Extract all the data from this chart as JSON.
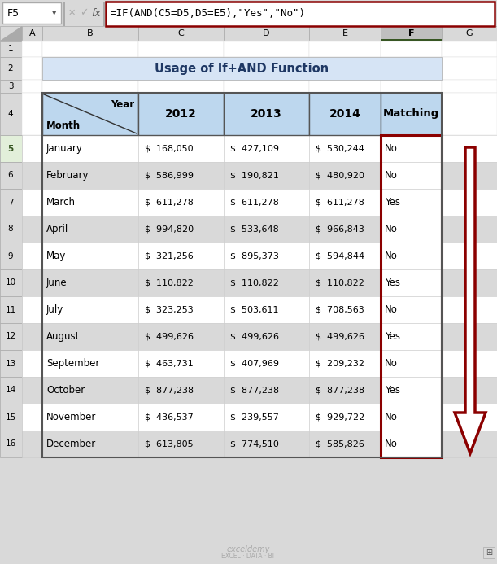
{
  "title": "Usage of If+AND Function",
  "formula_bar_text": "=IF(AND(C5=D5,D5=E5),\"Yes\",\"No\")",
  "cell_ref": "F5",
  "months": [
    "January",
    "February",
    "March",
    "April",
    "May",
    "June",
    "July",
    "August",
    "September",
    "October",
    "November",
    "December"
  ],
  "col_2012": [
    "$  168,050",
    "$  586,999",
    "$  611,278",
    "$  994,820",
    "$  321,256",
    "$  110,822",
    "$  323,253",
    "$  499,626",
    "$  463,731",
    "$  877,238",
    "$  436,537",
    "$  613,805"
  ],
  "col_2013": [
    "$  427,109",
    "$  190,821",
    "$  611,278",
    "$  533,648",
    "$  895,373",
    "$  110,822",
    "$  503,611",
    "$  499,626",
    "$  407,969",
    "$  877,238",
    "$  239,557",
    "$  774,510"
  ],
  "col_2014": [
    "$  530,244",
    "$  480,920",
    "$  611,278",
    "$  966,843",
    "$  594,844",
    "$  110,822",
    "$  708,563",
    "$  499,626",
    "$  209,232",
    "$  877,238",
    "$  929,722",
    "$  585,826"
  ],
  "matching": [
    "No",
    "No",
    "Yes",
    "No",
    "No",
    "Yes",
    "No",
    "Yes",
    "No",
    "Yes",
    "No",
    "No"
  ],
  "header_bg": "#BDD7EE",
  "title_bg": "#D6E4F5",
  "row_bg_white": "#FFFFFF",
  "row_bg_gray": "#D9D9D9",
  "matching_border": "#8B0000",
  "arrow_color": "#8B0000",
  "fig_bg": "#D9D9D9",
  "excel_bg": "#F2F2F2",
  "formula_border": "#8B0000",
  "col_header_active_bg": "#BFBFBF",
  "col_header_bg": "#D9D9D9",
  "row_num_active_bg": "#E2EFDA",
  "row_num_bg": "#D9D9D9"
}
